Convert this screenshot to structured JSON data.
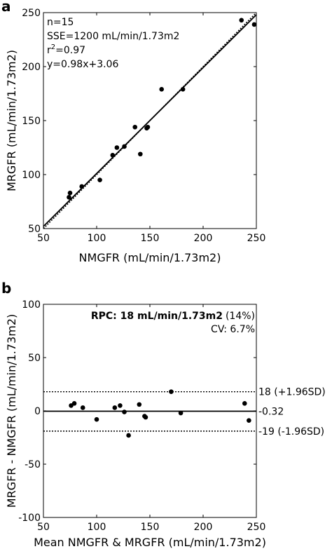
{
  "chart_data": [
    {
      "panel_label": "a",
      "type": "scatter",
      "xlabel": "NMGFR (mL/min/1.73m2)",
      "ylabel": "MRGFR (mL/min/1.73m2)",
      "xlim": [
        50,
        250
      ],
      "ylim": [
        50,
        250
      ],
      "xticks": [
        "50",
        "100",
        "150",
        "200",
        "250"
      ],
      "yticks": [
        "50",
        "100",
        "150",
        "200",
        "250"
      ],
      "annotations": {
        "n": "n=15",
        "sse": "SSE=1200 mL/min/1.73m2",
        "r2_prefix": "r",
        "r2_sup": "2",
        "r2_value": "=0.97",
        "equation": "y=0.98x+3.06"
      },
      "fit_line": {
        "slope": 0.98,
        "intercept": 3.06,
        "style": "solid"
      },
      "identity_line": {
        "slope": 1,
        "intercept": 0,
        "style": "dotted"
      },
      "points": [
        {
          "x": 74,
          "y": 79
        },
        {
          "x": 75,
          "y": 83
        },
        {
          "x": 86,
          "y": 89
        },
        {
          "x": 103,
          "y": 95
        },
        {
          "x": 115,
          "y": 118
        },
        {
          "x": 119,
          "y": 125
        },
        {
          "x": 126,
          "y": 126
        },
        {
          "x": 136,
          "y": 144
        },
        {
          "x": 141,
          "y": 119
        },
        {
          "x": 147,
          "y": 143
        },
        {
          "x": 148,
          "y": 144
        },
        {
          "x": 161,
          "y": 179
        },
        {
          "x": 181,
          "y": 179
        },
        {
          "x": 236,
          "y": 243
        },
        {
          "x": 248,
          "y": 239
        }
      ]
    },
    {
      "panel_label": "b",
      "type": "scatter",
      "xlabel": "Mean NMGFR & MRGFR (mL/min/1.73m2)",
      "ylabel": "MRGFR - NMGFR (mL/min/1.73m2)",
      "xlim": [
        50,
        250
      ],
      "ylim": [
        -100,
        100
      ],
      "xticks": [
        "50",
        "100",
        "150",
        "200",
        "250"
      ],
      "yticks": [
        "100",
        "50",
        "0",
        "-50",
        "-100"
      ],
      "rpc_bold": "RPC: 18 mL/min/1.73m2",
      "rpc_pct": "(14%)",
      "cv": "CV: 6.7%",
      "bias": {
        "value": -0.32,
        "label": "-0.32",
        "style": "solid"
      },
      "upper_loa": {
        "value": 18,
        "label": "18 (+1.96SD)",
        "style": "dotted"
      },
      "lower_loa": {
        "value": -19,
        "label": "-19 (-1.96SD)",
        "style": "dotted"
      },
      "points": [
        {
          "x": 76,
          "y": 5
        },
        {
          "x": 79,
          "y": 7
        },
        {
          "x": 87,
          "y": 3
        },
        {
          "x": 100,
          "y": -8
        },
        {
          "x": 117,
          "y": 3
        },
        {
          "x": 122,
          "y": 5
        },
        {
          "x": 126,
          "y": -1
        },
        {
          "x": 130,
          "y": -23
        },
        {
          "x": 140,
          "y": 6
        },
        {
          "x": 145,
          "y": -5
        },
        {
          "x": 146,
          "y": -6
        },
        {
          "x": 170,
          "y": 18
        },
        {
          "x": 179,
          "y": -2
        },
        {
          "x": 239,
          "y": 7
        },
        {
          "x": 243,
          "y": -9
        }
      ]
    }
  ]
}
